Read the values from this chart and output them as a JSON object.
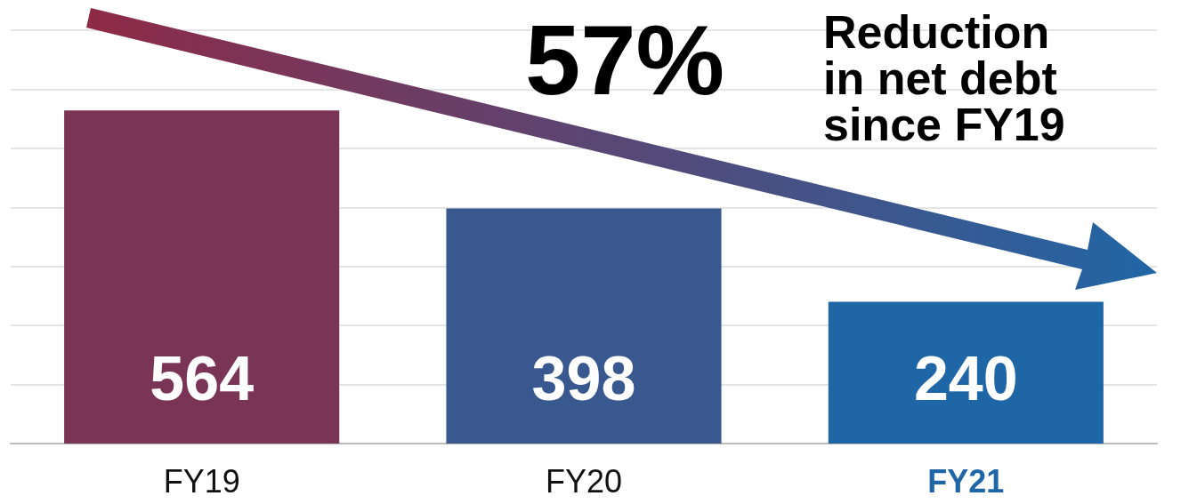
{
  "chart_data": {
    "type": "bar",
    "categories": [
      "FY19",
      "FY20",
      "FY21"
    ],
    "values": [
      564,
      398,
      240
    ],
    "colors": [
      "#7a3456",
      "#3a5890",
      "#1f66a6"
    ],
    "ylim": [
      0,
      700
    ],
    "yticks": [
      {
        "value": 0,
        "label": null
      },
      {
        "value": 100,
        "label": null
      },
      {
        "value": 200,
        "label": null
      },
      {
        "value": 300,
        "label": null
      },
      {
        "value": 400,
        "label": null
      },
      {
        "value": 500,
        "label": null
      },
      {
        "value": 600,
        "label": null
      },
      {
        "value": 700,
        "label": null
      }
    ],
    "grid": "y",
    "data_labels": true,
    "tick_labels": "x",
    "annotations": [
      "57%",
      "Reduction in net debt since FY19"
    ]
  }
}
